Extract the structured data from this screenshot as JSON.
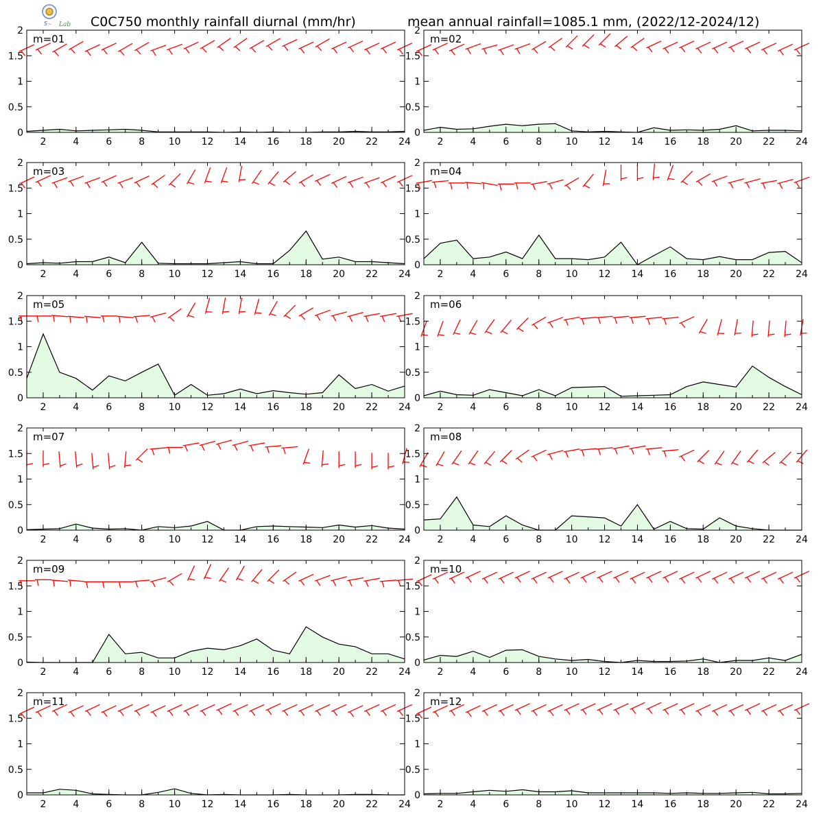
{
  "header": {
    "title_left": "C0C750 monthly rainfall diurnal (mm/hr)",
    "title_right": "mean annual rainfall=1085.1 mm, (2022/12-2024/12)",
    "logo_text": "Lab"
  },
  "colors": {
    "rain_fill": "#e2fbe2",
    "rain_line": "#000000",
    "wind_barb": "#ff0000"
  },
  "chart_data": {
    "type": "area",
    "x": [
      1,
      2,
      3,
      4,
      5,
      6,
      7,
      8,
      9,
      10,
      11,
      12,
      13,
      14,
      15,
      16,
      17,
      18,
      19,
      20,
      21,
      22,
      23,
      24
    ],
    "xticks": [
      2,
      4,
      6,
      8,
      10,
      12,
      14,
      16,
      18,
      20,
      22,
      24
    ],
    "yticks": [
      0,
      0.5,
      1,
      1.5,
      2
    ],
    "ytick_labels": [
      "0",
      "0.5",
      "1",
      "1.5",
      "2"
    ],
    "xlim": [
      1,
      24
    ],
    "ylim": [
      0,
      2
    ],
    "panels": [
      {
        "label": "m=01",
        "rain": [
          0.02,
          0.04,
          0.06,
          0.03,
          0.04,
          0.05,
          0.06,
          0.04,
          0.01,
          0.01,
          0.01,
          0.01,
          0.0,
          0.01,
          0.0,
          0.01,
          0.0,
          0.0,
          0.01,
          0.01,
          0.02,
          0.01,
          0.01,
          0.02
        ],
        "wind_y": [
          1.65,
          1.68,
          1.65,
          1.7,
          1.65,
          1.68,
          1.66,
          1.68,
          1.65,
          1.67,
          1.7,
          1.72,
          1.75,
          1.75,
          1.72,
          1.76,
          1.75,
          1.7,
          1.75,
          1.7,
          1.72,
          1.68,
          1.7,
          1.68
        ],
        "wind_dir": [
          245,
          245,
          240,
          240,
          245,
          245,
          240,
          240,
          250,
          250,
          245,
          240,
          235,
          235,
          240,
          240,
          245,
          245,
          240,
          245,
          245,
          245,
          245,
          245
        ]
      },
      {
        "label": "m=02",
        "rain": [
          0.04,
          0.1,
          0.06,
          0.07,
          0.12,
          0.16,
          0.13,
          0.16,
          0.17,
          0.03,
          0.01,
          0.02,
          0.01,
          0.0,
          0.09,
          0.04,
          0.05,
          0.04,
          0.06,
          0.13,
          0.03,
          0.04,
          0.04,
          0.03
        ],
        "wind_y": [
          1.65,
          1.68,
          1.66,
          1.68,
          1.67,
          1.66,
          1.68,
          1.7,
          1.75,
          1.78,
          1.8,
          1.82,
          1.78,
          1.75,
          1.72,
          1.7,
          1.72,
          1.7,
          1.7,
          1.72,
          1.7,
          1.68,
          1.66,
          1.68
        ],
        "wind_dir": [
          245,
          245,
          245,
          250,
          255,
          250,
          250,
          240,
          235,
          225,
          225,
          225,
          230,
          235,
          245,
          245,
          245,
          245,
          245,
          245,
          245,
          245,
          245,
          245
        ]
      },
      {
        "label": "m=03",
        "rain": [
          0.02,
          0.04,
          0.03,
          0.06,
          0.06,
          0.15,
          0.04,
          0.44,
          0.03,
          0.02,
          0.02,
          0.02,
          0.04,
          0.06,
          0.02,
          0.02,
          0.28,
          0.66,
          0.11,
          0.15,
          0.06,
          0.06,
          0.04,
          0.02
        ],
        "wind_y": [
          1.65,
          1.68,
          1.65,
          1.68,
          1.65,
          1.68,
          1.65,
          1.67,
          1.66,
          1.67,
          1.72,
          1.75,
          1.75,
          1.78,
          1.72,
          1.7,
          1.72,
          1.68,
          1.7,
          1.66,
          1.66,
          1.65,
          1.67,
          1.68
        ],
        "wind_dir": [
          245,
          245,
          250,
          250,
          250,
          245,
          250,
          245,
          235,
          225,
          210,
          200,
          200,
          190,
          215,
          220,
          230,
          240,
          245,
          245,
          250,
          250,
          245,
          245
        ]
      },
      {
        "label": "m=04",
        "rain": [
          0.12,
          0.42,
          0.48,
          0.12,
          0.15,
          0.25,
          0.12,
          0.58,
          0.12,
          0.12,
          0.1,
          0.15,
          0.44,
          0.0,
          0.18,
          0.35,
          0.12,
          0.1,
          0.16,
          0.1,
          0.1,
          0.24,
          0.26,
          0.04
        ],
        "wind_y": [
          1.62,
          1.63,
          1.6,
          1.6,
          1.58,
          1.58,
          1.6,
          1.6,
          1.62,
          1.62,
          1.65,
          1.7,
          1.8,
          1.8,
          1.82,
          1.8,
          1.72,
          1.7,
          1.68,
          1.64,
          1.64,
          1.62,
          1.63,
          1.66
        ],
        "wind_dir": [
          260,
          265,
          270,
          275,
          280,
          270,
          270,
          260,
          255,
          240,
          220,
          190,
          180,
          180,
          185,
          200,
          225,
          240,
          250,
          255,
          255,
          260,
          255,
          250
        ]
      },
      {
        "label": "m=05",
        "rain": [
          0.38,
          1.25,
          0.5,
          0.38,
          0.15,
          0.43,
          0.33,
          0.5,
          0.66,
          0.05,
          0.26,
          0.05,
          0.08,
          0.17,
          0.08,
          0.14,
          0.1,
          0.07,
          0.1,
          0.45,
          0.18,
          0.26,
          0.13,
          0.23
        ],
        "wind_y": [
          1.6,
          1.6,
          1.6,
          1.58,
          1.58,
          1.6,
          1.58,
          1.6,
          1.62,
          1.65,
          1.72,
          1.8,
          1.8,
          1.8,
          1.78,
          1.75,
          1.7,
          1.68,
          1.66,
          1.64,
          1.63,
          1.62,
          1.62,
          1.62
        ],
        "wind_dir": [
          270,
          270,
          275,
          275,
          275,
          270,
          275,
          265,
          255,
          235,
          210,
          195,
          190,
          190,
          195,
          210,
          225,
          240,
          250,
          255,
          255,
          260,
          260,
          260
        ]
      },
      {
        "label": "m=06",
        "rain": [
          0.04,
          0.13,
          0.06,
          0.05,
          0.16,
          0.1,
          0.04,
          0.16,
          0.04,
          0.2,
          0.21,
          0.22,
          0.03,
          0.04,
          0.05,
          0.06,
          0.22,
          0.31,
          0.26,
          0.21,
          0.62,
          0.4,
          0.22,
          0.06
        ],
        "wind_y": [
          1.35,
          1.35,
          1.38,
          1.38,
          1.4,
          1.4,
          1.45,
          1.5,
          1.52,
          1.55,
          1.56,
          1.58,
          1.58,
          1.58,
          1.56,
          1.56,
          1.52,
          1.4,
          1.38,
          1.38,
          1.35,
          1.35,
          1.35,
          1.38
        ],
        "wind_dir": [
          200,
          200,
          205,
          210,
          215,
          220,
          225,
          240,
          250,
          260,
          265,
          265,
          265,
          265,
          265,
          265,
          245,
          210,
          195,
          190,
          185,
          185,
          185,
          190
        ]
      },
      {
        "label": "m=07",
        "rain": [
          0.01,
          0.02,
          0.03,
          0.12,
          0.04,
          0.02,
          0.03,
          0.0,
          0.07,
          0.05,
          0.08,
          0.17,
          0.0,
          0.0,
          0.07,
          0.08,
          0.07,
          0.06,
          0.05,
          0.1,
          0.06,
          0.09,
          0.04,
          0.02
        ],
        "wind_y": [
          1.4,
          1.4,
          1.38,
          1.38,
          1.35,
          1.35,
          1.38,
          1.48,
          1.6,
          1.62,
          1.68,
          1.7,
          1.72,
          1.7,
          1.68,
          1.64,
          1.62,
          1.44,
          1.4,
          1.38,
          1.38,
          1.35,
          1.35,
          1.45
        ],
        "wind_dir": [
          180,
          180,
          175,
          175,
          175,
          175,
          185,
          225,
          265,
          270,
          260,
          255,
          255,
          255,
          260,
          265,
          265,
          200,
          185,
          180,
          180,
          180,
          180,
          195
        ]
      },
      {
        "label": "m=08",
        "rain": [
          0.2,
          0.22,
          0.65,
          0.1,
          0.07,
          0.28,
          0.1,
          0.0,
          0.0,
          0.28,
          0.26,
          0.24,
          0.08,
          0.5,
          0.02,
          0.17,
          0.03,
          0.02,
          0.24,
          0.08,
          0.03,
          0.0,
          0.0,
          0.0
        ],
        "wind_y": [
          1.38,
          1.4,
          1.42,
          1.42,
          1.42,
          1.45,
          1.48,
          1.5,
          1.52,
          1.56,
          1.58,
          1.6,
          1.62,
          1.62,
          1.6,
          1.56,
          1.5,
          1.45,
          1.42,
          1.42,
          1.45,
          1.42,
          1.42,
          1.45
        ],
        "wind_dir": [
          210,
          210,
          215,
          215,
          220,
          225,
          235,
          245,
          255,
          260,
          265,
          265,
          260,
          260,
          265,
          265,
          245,
          225,
          215,
          215,
          220,
          230,
          225,
          220
        ]
      },
      {
        "label": "m=09",
        "rain": [
          0.01,
          0.0,
          0.0,
          0.0,
          0.0,
          0.55,
          0.17,
          0.2,
          0.09,
          0.09,
          0.22,
          0.28,
          0.25,
          0.33,
          0.46,
          0.24,
          0.17,
          0.7,
          0.5,
          0.36,
          0.31,
          0.17,
          0.17,
          0.07
        ],
        "wind_y": [
          1.6,
          1.62,
          1.6,
          1.6,
          1.58,
          1.58,
          1.58,
          1.6,
          1.62,
          1.66,
          1.75,
          1.78,
          1.72,
          1.75,
          1.7,
          1.7,
          1.68,
          1.66,
          1.65,
          1.64,
          1.63,
          1.62,
          1.6,
          1.62
        ],
        "wind_dir": [
          270,
          270,
          275,
          275,
          270,
          270,
          270,
          265,
          255,
          240,
          205,
          205,
          215,
          210,
          220,
          225,
          235,
          245,
          250,
          255,
          260,
          260,
          265,
          265
        ]
      },
      {
        "label": "m=10",
        "rain": [
          0.05,
          0.14,
          0.12,
          0.22,
          0.1,
          0.24,
          0.25,
          0.12,
          0.07,
          0.04,
          0.06,
          0.02,
          0.0,
          0.04,
          0.02,
          0.02,
          0.03,
          0.07,
          0.0,
          0.04,
          0.04,
          0.09,
          0.04,
          0.16
        ],
        "wind_y": [
          1.65,
          1.7,
          1.7,
          1.72,
          1.7,
          1.7,
          1.72,
          1.7,
          1.72,
          1.7,
          1.72,
          1.72,
          1.72,
          1.7,
          1.72,
          1.72,
          1.7,
          1.72,
          1.7,
          1.7,
          1.72,
          1.7,
          1.7,
          1.72
        ],
        "wind_dir": [
          245,
          245,
          245,
          245,
          245,
          245,
          245,
          245,
          245,
          245,
          245,
          245,
          245,
          245,
          245,
          245,
          245,
          245,
          245,
          245,
          245,
          245,
          245,
          245
        ]
      },
      {
        "label": "m=11",
        "rain": [
          0.04,
          0.04,
          0.11,
          0.09,
          0.02,
          0.01,
          0.0,
          0.0,
          0.05,
          0.12,
          0.03,
          0.0,
          0.01,
          0.0,
          0.0,
          0.0,
          0.01,
          0.0,
          0.0,
          0.0,
          0.01,
          0.01,
          0.0,
          0.0
        ],
        "wind_y": [
          1.65,
          1.68,
          1.7,
          1.68,
          1.7,
          1.68,
          1.7,
          1.7,
          1.68,
          1.7,
          1.7,
          1.7,
          1.72,
          1.7,
          1.7,
          1.72,
          1.7,
          1.7,
          1.7,
          1.7,
          1.68,
          1.7,
          1.7,
          1.7
        ],
        "wind_dir": [
          245,
          245,
          245,
          245,
          245,
          245,
          245,
          245,
          245,
          245,
          245,
          245,
          245,
          245,
          245,
          245,
          245,
          245,
          245,
          245,
          245,
          245,
          245,
          245
        ]
      },
      {
        "label": "m=12",
        "rain": [
          0.02,
          0.03,
          0.03,
          0.06,
          0.09,
          0.07,
          0.1,
          0.06,
          0.06,
          0.08,
          0.04,
          0.04,
          0.04,
          0.04,
          0.04,
          0.03,
          0.04,
          0.03,
          0.03,
          0.04,
          0.05,
          0.02,
          0.02,
          0.03
        ],
        "wind_y": [
          1.65,
          1.68,
          1.7,
          1.68,
          1.7,
          1.7,
          1.72,
          1.7,
          1.7,
          1.72,
          1.72,
          1.72,
          1.72,
          1.74,
          1.74,
          1.72,
          1.72,
          1.7,
          1.7,
          1.7,
          1.72,
          1.7,
          1.7,
          1.72
        ],
        "wind_dir": [
          245,
          245,
          245,
          245,
          245,
          245,
          245,
          245,
          245,
          245,
          245,
          245,
          245,
          245,
          245,
          245,
          245,
          245,
          245,
          245,
          245,
          245,
          245,
          245
        ]
      }
    ]
  }
}
